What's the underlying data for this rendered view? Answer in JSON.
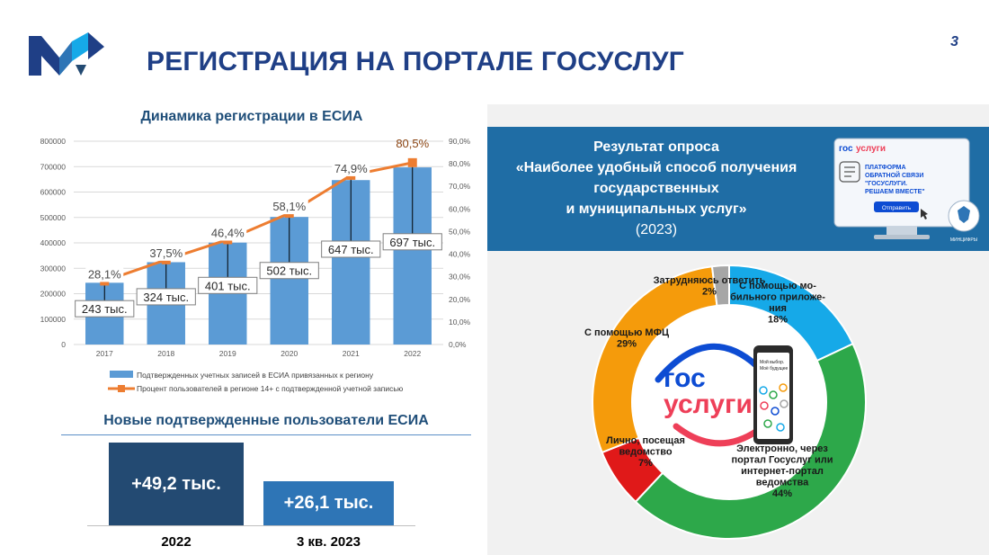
{
  "header": {
    "title": "РЕГИСТРАЦИЯ НА ПОРТАЛЕ ГОСУСЛУГ",
    "page_number": "3"
  },
  "colors": {
    "title_blue": "#1f3f86",
    "bar_blue": "#5b9bd5",
    "line_orange": "#ed7d31",
    "dark_navy": "#234a72",
    "mid_blue": "#2e75b6",
    "header_blue": "#1f6da5"
  },
  "chart_data": [
    {
      "type": "bar",
      "title": "Динамика регистрации в ЕСИА",
      "categories": [
        "2017",
        "2018",
        "2019",
        "2020",
        "2021",
        "2022"
      ],
      "series": [
        {
          "name": "Подтвержденных учетных записей в ЕСИА привязанных к региону",
          "type": "bar",
          "axis": "left",
          "values": [
            243000,
            324000,
            401000,
            502000,
            647000,
            697000
          ],
          "labels": [
            "243 тыс.",
            "324 тыс.",
            "401 тыс.",
            "502 тыс.",
            "647 тыс.",
            "697 тыс."
          ]
        },
        {
          "name": "Процент пользователей в регионе 14+ с подтвержденной учетной записью",
          "type": "line",
          "axis": "right",
          "values": [
            28.1,
            37.5,
            46.4,
            58.1,
            74.9,
            80.5
          ],
          "labels": [
            "28,1%",
            "37,5%",
            "46,4%",
            "58,1%",
            "74,9%",
            "80,5%"
          ]
        }
      ],
      "ylim": [
        0,
        800000
      ],
      "y_ticks": [
        "0",
        "100000",
        "200000",
        "300000",
        "400000",
        "500000",
        "600000",
        "700000",
        "800000"
      ],
      "y2lim": [
        0,
        90
      ],
      "y2_ticks": [
        "0,0%",
        "10,0%",
        "20,0%",
        "30,0%",
        "40,0%",
        "50,0%",
        "60,0%",
        "70,0%",
        "80,0%",
        "90,0%"
      ],
      "grid": true,
      "legend": "bottom"
    },
    {
      "type": "bar",
      "title": "Новые подтвержденные пользователи ЕСИА",
      "categories": [
        "2022",
        "3 кв. 2023"
      ],
      "values": [
        49.2,
        26.1
      ],
      "labels": [
        "+49,2 тыс.",
        "+26,1 тыс."
      ]
    },
    {
      "type": "pie",
      "title": "Результат опроса «Наиболее удобный способ получения государственных и муниципальных услуг» (2023)",
      "slices": [
        {
          "label": "С помощью мобильного приложения",
          "display": [
            "С помощью мо-",
            "бильного приложе-",
            "ния",
            "18%"
          ],
          "value": 18,
          "color": "#16a9e8"
        },
        {
          "label": "Электронно, через портал Госуслуг или интернет-портал ведомства",
          "display": [
            "Электронно, через",
            "портал Госуслуг или",
            "интернет-портал",
            "ведомства",
            "44%"
          ],
          "value": 44,
          "color": "#2da84a"
        },
        {
          "label": "Лично, посещая ведомство",
          "display": [
            "Лично, посещая",
            "ведомство",
            "7%"
          ],
          "value": 7,
          "color": "#e01919"
        },
        {
          "label": "С помощью МФЦ",
          "display": [
            "С помощью МФЦ",
            "29%"
          ],
          "value": 29,
          "color": "#f59b0b"
        },
        {
          "label": "Затрудняюсь ответить",
          "display": [
            "Затрудняюсь ответить",
            "2%"
          ],
          "value": 2,
          "color": "#a6a6a6"
        }
      ]
    }
  ],
  "survey": {
    "lines": [
      "Результат опроса",
      "«Наиболее удобный способ получения",
      "государственных",
      "и муниципальных услуг»"
    ],
    "year": "(2023)"
  },
  "platform_banner": {
    "brand_gos": "гос",
    "brand_uslugi": "услуги",
    "lines": [
      "ПЛАТФОРМА",
      "ОБРАТНОЙ СВЯЗИ",
      "\"ГОСУСЛУГИ.",
      "РЕШАЕМ ВМЕСТЕ\""
    ],
    "button": "Отправить",
    "emblem_caption": "МИНЦИФРЫ"
  },
  "center_logo": {
    "line1": "гос",
    "line2": "услуги",
    "phone_lines": [
      "Мой выбор.",
      "Моё будущее"
    ]
  }
}
